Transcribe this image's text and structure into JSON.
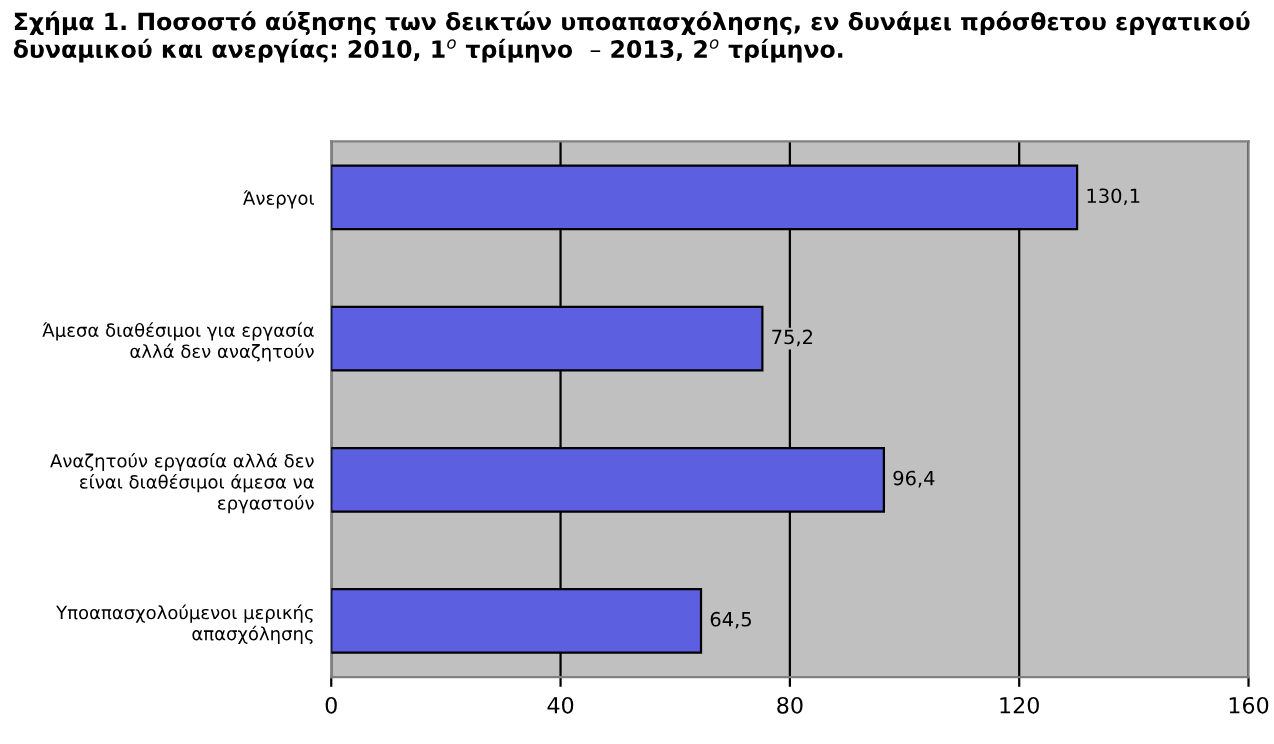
{
  "chart_data": {
    "type": "bar",
    "orientation": "horizontal",
    "title": "Σχήμα 1. Ποσοστό αύξησης των δεικτών υποαπασχόλησης, εν δυνάμει πρόσθετου εργατικού\nδυναμικού και ανεργίας: 2010, 1$^{ο}$ τρίμηνο  – 2013, 2$^{ο}$ τρίμηνο.",
    "categories": [
      "Άνεργοι",
      "Άμεσα διαθέσιμοι για εργασία\nαλλά δεν αναζητούν",
      "Αναζητούν εργασία αλλά δεν\nείναι διαθέσιμοι άμεσα να\nεργαστούν",
      "Υποαπασχολούμενοι μερικής\nαπασχόλησης"
    ],
    "values": [
      130.1,
      75.2,
      96.4,
      64.5
    ],
    "value_labels": [
      "130,1",
      "75,2",
      "96,4",
      "64,5"
    ],
    "color": "#5b5fe0",
    "xlim": [
      0,
      160
    ],
    "xticks": [
      0,
      40,
      80,
      120,
      160
    ],
    "grid": "x"
  }
}
